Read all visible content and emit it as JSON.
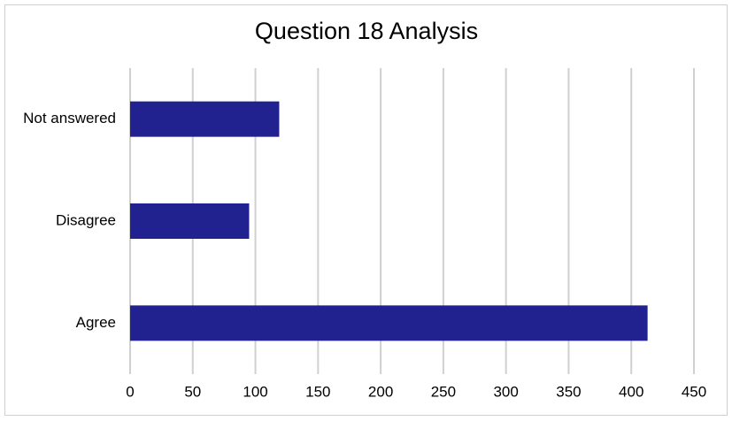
{
  "chart_data": {
    "type": "bar",
    "orientation": "horizontal",
    "title": "Question 18 Analysis",
    "categories": [
      "Agree",
      "Disagree",
      "Not answered"
    ],
    "values": [
      413,
      95,
      119
    ],
    "color": "#21218f",
    "xlim": [
      0,
      450
    ],
    "xticks": [
      0,
      50,
      100,
      150,
      200,
      250,
      300,
      350,
      400,
      450
    ],
    "grid": true
  }
}
